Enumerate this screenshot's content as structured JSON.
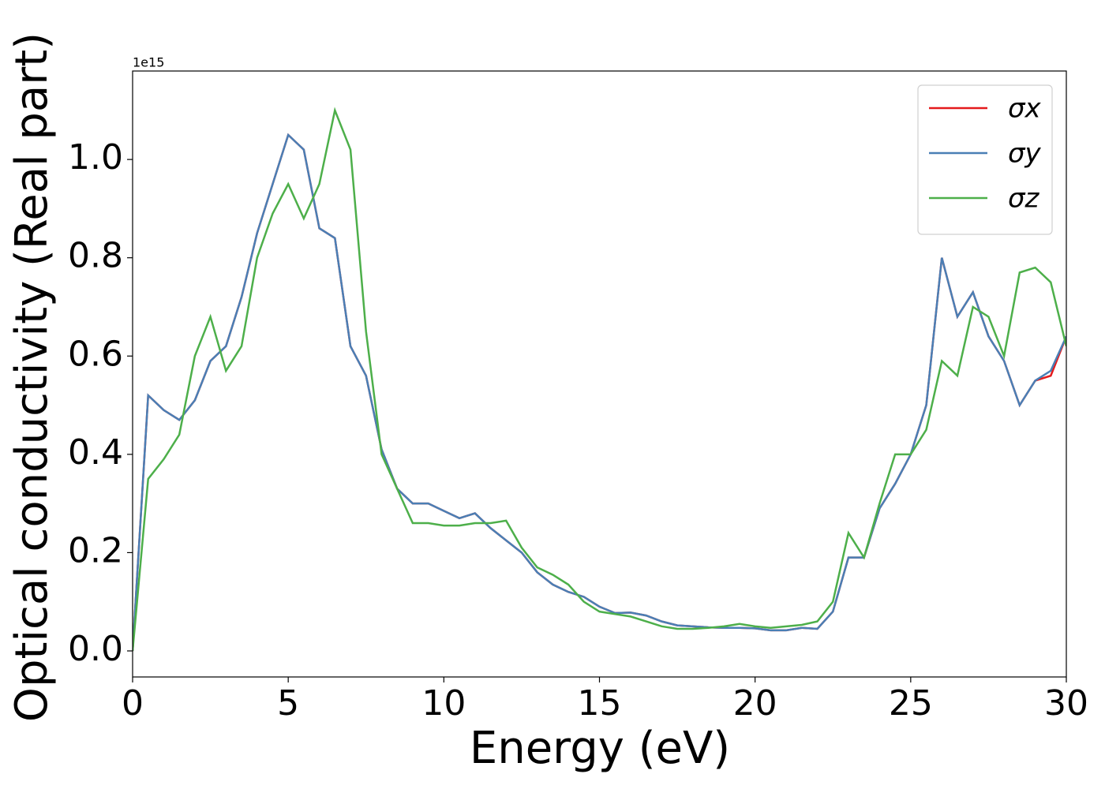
{
  "chart_data": {
    "type": "line",
    "x_label": "Energy (eV)",
    "y_label": "Optical conductivity (Real part)",
    "y_offset_label": "1e15",
    "x": [
      0,
      0.5,
      1,
      1.5,
      2,
      2.5,
      3,
      3.5,
      4,
      4.5,
      5,
      5.5,
      6,
      6.5,
      7,
      7.5,
      8,
      8.5,
      9,
      9.5,
      10,
      10.5,
      11,
      11.5,
      12,
      12.5,
      13,
      13.5,
      14,
      14.5,
      15,
      15.5,
      16,
      16.5,
      17,
      17.5,
      18,
      18.5,
      19,
      19.5,
      20,
      20.5,
      21,
      21.5,
      22,
      22.5,
      23,
      23.5,
      24,
      24.5,
      25,
      25.5,
      26,
      26.5,
      27,
      27.5,
      28,
      28.5,
      29,
      29.5,
      30
    ],
    "series": [
      {
        "name": "σx",
        "color": "#e41a1c",
        "values": [
          0,
          0.52,
          0.49,
          0.47,
          0.51,
          0.59,
          0.62,
          0.72,
          0.85,
          0.95,
          1.05,
          1.02,
          0.86,
          0.84,
          0.62,
          0.56,
          0.41,
          0.33,
          0.3,
          0.3,
          0.285,
          0.27,
          0.28,
          0.25,
          0.225,
          0.2,
          0.16,
          0.135,
          0.12,
          0.11,
          0.09,
          0.077,
          0.078,
          0.072,
          0.06,
          0.052,
          0.05,
          0.048,
          0.047,
          0.047,
          0.046,
          0.042,
          0.042,
          0.047,
          0.045,
          0.08,
          0.19,
          0.19,
          0.29,
          0.34,
          0.4,
          0.5,
          0.8,
          0.68,
          0.73,
          0.64,
          0.59,
          0.5,
          0.55,
          0.56,
          0.64
        ]
      },
      {
        "name": "σy",
        "color": "#4a7fb5",
        "values": [
          0,
          0.52,
          0.49,
          0.47,
          0.51,
          0.59,
          0.62,
          0.72,
          0.85,
          0.95,
          1.05,
          1.02,
          0.86,
          0.84,
          0.62,
          0.56,
          0.41,
          0.33,
          0.3,
          0.3,
          0.285,
          0.27,
          0.28,
          0.25,
          0.225,
          0.2,
          0.16,
          0.135,
          0.12,
          0.11,
          0.09,
          0.077,
          0.078,
          0.072,
          0.06,
          0.052,
          0.05,
          0.048,
          0.047,
          0.047,
          0.046,
          0.042,
          0.042,
          0.047,
          0.045,
          0.08,
          0.19,
          0.19,
          0.29,
          0.34,
          0.4,
          0.5,
          0.8,
          0.68,
          0.73,
          0.64,
          0.59,
          0.5,
          0.55,
          0.57,
          0.64
        ]
      },
      {
        "name": "σz",
        "color": "#4daf4a",
        "values": [
          0,
          0.35,
          0.39,
          0.44,
          0.6,
          0.68,
          0.57,
          0.62,
          0.8,
          0.89,
          0.95,
          0.88,
          0.95,
          1.1,
          1.02,
          0.65,
          0.4,
          0.33,
          0.26,
          0.26,
          0.255,
          0.255,
          0.26,
          0.26,
          0.265,
          0.21,
          0.17,
          0.155,
          0.135,
          0.1,
          0.08,
          0.075,
          0.07,
          0.06,
          0.05,
          0.045,
          0.045,
          0.047,
          0.05,
          0.055,
          0.05,
          0.047,
          0.05,
          0.053,
          0.06,
          0.1,
          0.24,
          0.19,
          0.3,
          0.4,
          0.4,
          0.45,
          0.59,
          0.56,
          0.7,
          0.68,
          0.6,
          0.77,
          0.78,
          0.75,
          0.62
        ]
      }
    ],
    "xlim": [
      0,
      30
    ],
    "xticks": [
      0,
      5,
      10,
      15,
      20,
      25,
      30
    ],
    "ylim": [
      -0.053,
      1.18
    ],
    "yticks": [
      {
        "value": 0,
        "label": "0.0"
      },
      0.2,
      0.4,
      0.6,
      0.8,
      {
        "value": 1,
        "label": "1.0"
      }
    ],
    "legend": "upper right",
    "grid": false
  }
}
